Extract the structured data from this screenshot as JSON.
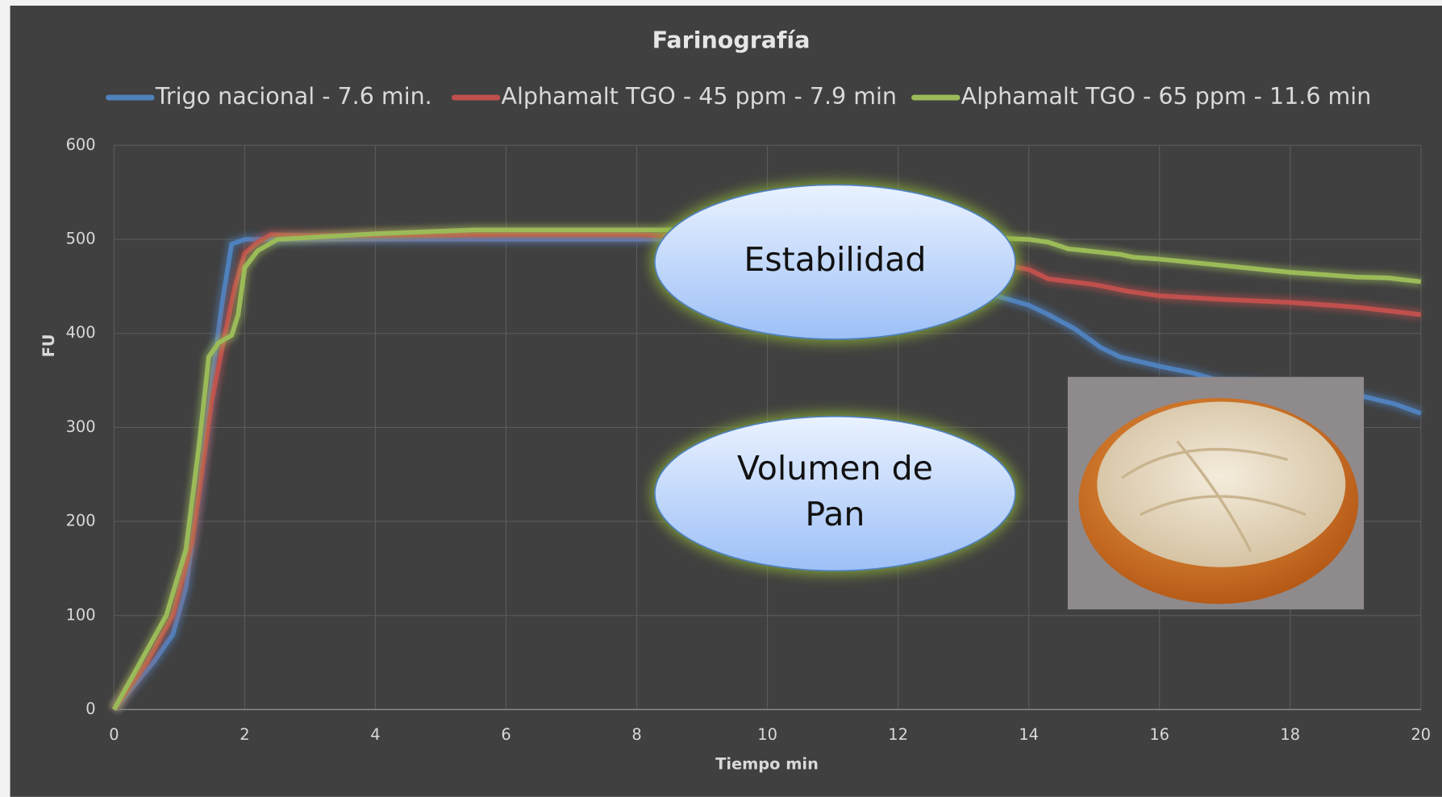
{
  "chart_data": {
    "type": "line",
    "title": "Farinografía",
    "xlabel": "Tiempo min",
    "ylabel": "FU",
    "xlim": [
      0,
      20
    ],
    "xticks": [
      0,
      2,
      4,
      6,
      8,
      10,
      12,
      14,
      16,
      18,
      20
    ],
    "ylim": [
      0,
      600
    ],
    "yticks": [
      0,
      100,
      200,
      300,
      400,
      500,
      600
    ],
    "grid": true,
    "legend": "top",
    "series": [
      {
        "name": "Trigo nacional - 7.6 min.",
        "color": "#4f81bd",
        "x": [
          0,
          0.3,
          0.6,
          0.9,
          1.1,
          1.3,
          1.5,
          1.65,
          1.8,
          2,
          3,
          6,
          8,
          10,
          12,
          13,
          13.5,
          14,
          14.3,
          14.7,
          15.1,
          15.4,
          16,
          16.5,
          17,
          18,
          19,
          19.6,
          20
        ],
        "values": [
          0,
          25,
          50,
          80,
          130,
          230,
          350,
          430,
          495,
          500,
          500,
          500,
          500,
          500,
          470,
          445,
          440,
          430,
          420,
          405,
          385,
          375,
          365,
          358,
          348,
          345,
          335,
          325,
          315
        ]
      },
      {
        "name": "Alphamalt TGO - 45 ppm - 7.9 min",
        "color": "#c0504d",
        "x": [
          0,
          0.5,
          0.9,
          1.2,
          1.5,
          1.7,
          1.85,
          2,
          2.2,
          2.4,
          3,
          6,
          8,
          10,
          12,
          13,
          14,
          14.3,
          15,
          15.5,
          16,
          17,
          18,
          19,
          20
        ],
        "values": [
          0,
          50,
          100,
          180,
          330,
          400,
          450,
          485,
          497,
          505,
          504,
          505,
          505,
          500,
          490,
          480,
          468,
          458,
          452,
          445,
          440,
          436,
          433,
          428,
          420
        ]
      },
      {
        "name": "Alphamalt TGO - 65 ppm - 11.6 min",
        "color": "#9bbb59",
        "x": [
          0,
          0.4,
          0.8,
          1.1,
          1.3,
          1.45,
          1.6,
          1.8,
          1.9,
          2,
          2.2,
          2.5,
          4,
          5.5,
          8,
          10,
          12,
          13,
          14,
          14.3,
          14.6,
          15,
          15.4,
          15.6,
          16,
          17,
          18,
          19,
          19.5,
          20
        ],
        "values": [
          0,
          50,
          100,
          170,
          280,
          375,
          390,
          398,
          420,
          470,
          488,
          500,
          506,
          510,
          510,
          510,
          505,
          503,
          500,
          497,
          490,
          487,
          484,
          481,
          479,
          472,
          465,
          460,
          459,
          455
        ]
      }
    ],
    "annotations": [
      {
        "lines": [
          "Estabilidad"
        ]
      },
      {
        "lines": [
          "Volumen de",
          "Pan"
        ]
      }
    ]
  }
}
